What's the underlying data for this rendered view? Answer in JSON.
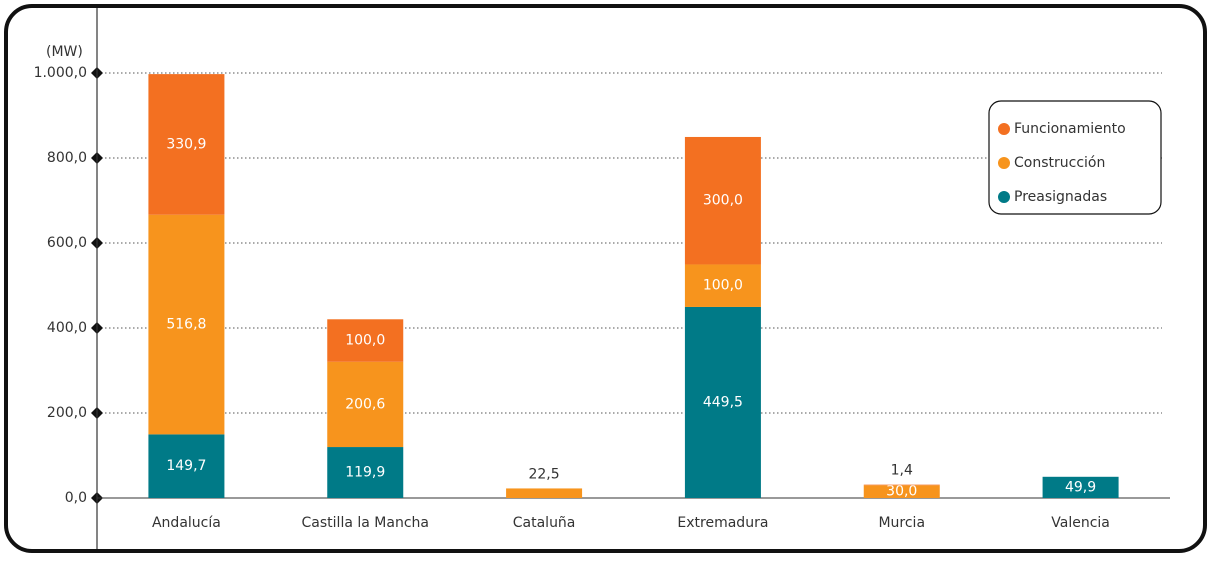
{
  "chart_data": {
    "type": "stacked_bar",
    "y_axis_label": "(MW)",
    "categories": [
      "Andalucía",
      "Castilla la Mancha",
      "Cataluña",
      "Extremadura",
      "Murcia",
      "Valencia"
    ],
    "series": [
      {
        "name": "Preasignadas",
        "color": "#007a87",
        "values": [
          149.7,
          119.9,
          null,
          449.5,
          null,
          49.9
        ],
        "value_labels": [
          "149,7",
          "119,9",
          null,
          "449,5",
          null,
          "49,9"
        ]
      },
      {
        "name": "Construcción",
        "color": "#f7941d",
        "values": [
          516.8,
          200.6,
          22.5,
          100.0,
          30.0,
          null
        ],
        "value_labels": [
          "516,8",
          "200,6",
          "22,5",
          "100,0",
          "30,0",
          null
        ]
      },
      {
        "name": "Funcionamiento",
        "color": "#f37021",
        "values": [
          330.9,
          100.0,
          null,
          300.0,
          1.4,
          null
        ],
        "value_labels": [
          "330,9",
          "100,0",
          null,
          "300,0",
          "1,4",
          null
        ]
      }
    ],
    "ylim": [
      0,
      1000
    ],
    "yticks": [
      {
        "value": 0,
        "label": "0,0"
      },
      {
        "value": 200,
        "label": "200,0"
      },
      {
        "value": 400,
        "label": "400,0"
      },
      {
        "value": 600,
        "label": "600,0"
      },
      {
        "value": 800,
        "label": "800,0"
      },
      {
        "value": 1000,
        "label": "1.000,0"
      }
    ],
    "grid": true,
    "legend_position": "upper right"
  }
}
